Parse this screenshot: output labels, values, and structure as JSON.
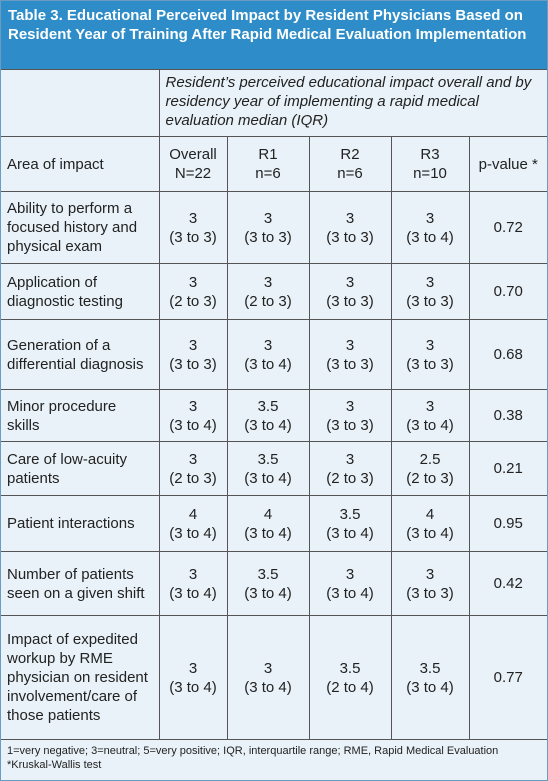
{
  "header": {
    "title": "Table 3. Educational Perceived Impact by Resident Physicians Based on Resident Year of Training After Rapid Medical Evaluation Implementation"
  },
  "table": {
    "caption": "Resident’s perceived educational impact overall and by residency year of implementing a rapid medical evaluation median (IQR)",
    "columns": [
      {
        "label": "Area of impact"
      },
      {
        "label": "Overall",
        "sub": "N=22"
      },
      {
        "label": "R1",
        "sub": "n=6"
      },
      {
        "label": "R2",
        "sub": "n=6"
      },
      {
        "label": "R3",
        "sub": "n=10"
      },
      {
        "label": "p-value *"
      }
    ],
    "rows": [
      [
        "Ability to perform a focused history and physical exam",
        {
          "median": "3",
          "iqr": "(3 to 3)"
        },
        {
          "median": "3",
          "iqr": "(3 to 3)"
        },
        {
          "median": "3",
          "iqr": "(3 to 3)"
        },
        {
          "median": "3",
          "iqr": "(3 to 4)"
        },
        "0.72"
      ],
      [
        "Application of diagnostic testing",
        {
          "median": "3",
          "iqr": "(2 to 3)"
        },
        {
          "median": "3",
          "iqr": "(2 to 3)"
        },
        {
          "median": "3",
          "iqr": "(3 to 3)"
        },
        {
          "median": "3",
          "iqr": "(3 to 3)"
        },
        "0.70"
      ],
      [
        "Generation of a differential diagnosis",
        {
          "median": "3",
          "iqr": "(3 to 3)"
        },
        {
          "median": "3",
          "iqr": "(3 to 4)"
        },
        {
          "median": "3",
          "iqr": "(3 to 3)"
        },
        {
          "median": "3",
          "iqr": "(3 to 3)"
        },
        "0.68"
      ],
      [
        "Minor procedure skills",
        {
          "median": "3",
          "iqr": "(3 to 4)"
        },
        {
          "median": "3.5",
          "iqr": "(3 to 4)"
        },
        {
          "median": "3",
          "iqr": "(3 to 3)"
        },
        {
          "median": "3",
          "iqr": "(3 to 4)"
        },
        "0.38"
      ],
      [
        "Care of low-acuity patients",
        {
          "median": "3",
          "iqr": "(2 to 3)"
        },
        {
          "median": "3.5",
          "iqr": "(3 to 4)"
        },
        {
          "median": "3",
          "iqr": "(2 to 3)"
        },
        {
          "median": "2.5",
          "iqr": "(2 to 3)"
        },
        "0.21"
      ],
      [
        "Patient interactions",
        {
          "median": "4",
          "iqr": "(3 to 4)"
        },
        {
          "median": "4",
          "iqr": "(3 to 4)"
        },
        {
          "median": "3.5",
          "iqr": "(3 to 4)"
        },
        {
          "median": "4",
          "iqr": "(3 to 4)"
        },
        "0.95"
      ],
      [
        "Number of patients seen on a given shift",
        {
          "median": "3",
          "iqr": "(3 to 4)"
        },
        {
          "median": "3.5",
          "iqr": "(3 to 4)"
        },
        {
          "median": "3",
          "iqr": "(3 to 4)"
        },
        {
          "median": "3",
          "iqr": "(3 to 3)"
        },
        "0.42"
      ],
      [
        "Impact of expedited workup by RME physician on resident involvement/care of those patients",
        {
          "median": "3",
          "iqr": "(3 to 4)"
        },
        {
          "median": "3",
          "iqr": "(3 to 4)"
        },
        {
          "median": "3.5",
          "iqr": "(2 to 4)"
        },
        {
          "median": "3.5",
          "iqr": "(3 to 4)"
        },
        "0.77"
      ]
    ]
  },
  "footnotes": [
    "1=very negative; 3=neutral; 5=very positive; IQR, interquartile range; RME, Rapid Medical Evaluation",
    "*Kruskal-Wallis test"
  ]
}
